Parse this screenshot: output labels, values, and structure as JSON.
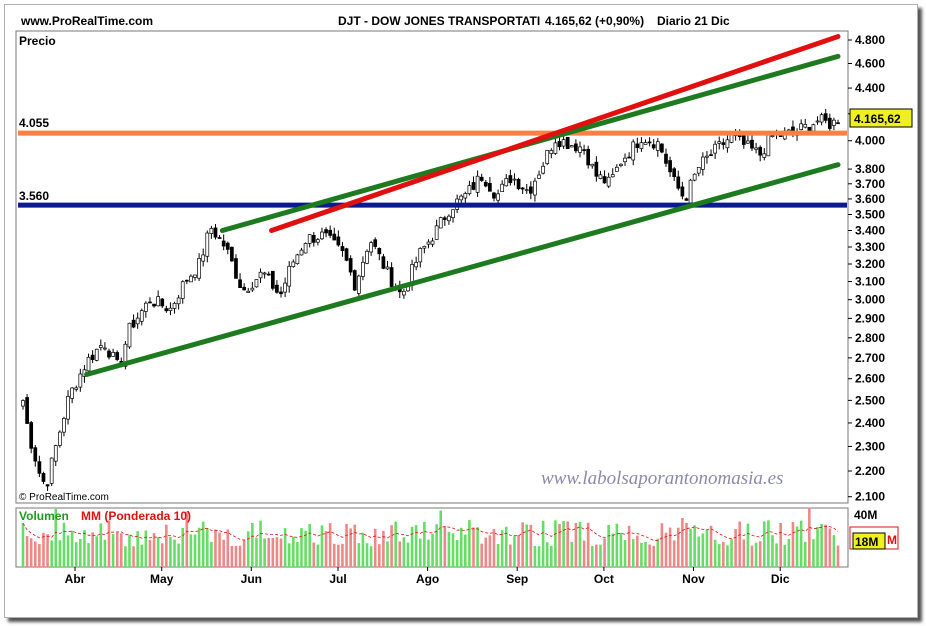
{
  "header": {
    "site": "www.ProRealTime.com",
    "instrument": "DJT - DOW JONES TRANSPORTATI",
    "last_change": "4.165,62 (+0,90%)",
    "period": "Diario  21 Dic"
  },
  "watermark": "www.labolsaporantonomasia.es",
  "copyright": "© ProRealTime.com",
  "colors": {
    "candle": "#000000",
    "support_line": "#1e7a1e",
    "trend_line": "#e01010",
    "level_high": "#ff8040",
    "level_low": "#0a1a90",
    "vol_up": "#66dd66",
    "vol_down": "#ee8888"
  },
  "chart_data": [
    {
      "type": "candlestick",
      "title": "Precio",
      "y_ticks": [
        "4.800",
        "4.600",
        "4.400",
        "4.200",
        "4.000",
        "3.800",
        "3.700",
        "3.600",
        "3.500",
        "3.400",
        "3.300",
        "3.200",
        "3.100",
        "3.000",
        "2.900",
        "2.800",
        "2.700",
        "2.600",
        "2.500",
        "2.400",
        "2.300",
        "2.200",
        "2.100"
      ],
      "y_range": [
        2080,
        4870
      ],
      "y_scale": "log",
      "x_labels": [
        "Abr",
        "May",
        "Jun",
        "Jul",
        "Ago",
        "Sep",
        "Oct",
        "Nov",
        "Dic"
      ],
      "last_value_label": "4.165,62",
      "close_path": [
        [
          "03-14",
          2500
        ],
        [
          "03-16",
          2350
        ],
        [
          "03-20",
          2180
        ],
        [
          "03-22",
          2140
        ],
        [
          "03-26",
          2330
        ],
        [
          "03-30",
          2520
        ],
        [
          "04-05",
          2680
        ],
        [
          "04-11",
          2780
        ],
        [
          "04-16",
          2650
        ],
        [
          "04-20",
          2850
        ],
        [
          "04-27",
          3000
        ],
        [
          "05-04",
          2950
        ],
        [
          "05-09",
          3100
        ],
        [
          "05-14",
          3200
        ],
        [
          "05-18",
          3420
        ],
        [
          "05-23",
          3300
        ],
        [
          "05-29",
          3050
        ],
        [
          "06-05",
          3150
        ],
        [
          "06-11",
          3020
        ],
        [
          "06-15",
          3200
        ],
        [
          "06-20",
          3350
        ],
        [
          "06-26",
          3370
        ],
        [
          "07-03",
          3250
        ],
        [
          "07-07",
          3080
        ],
        [
          "07-12",
          3350
        ],
        [
          "07-18",
          3150
        ],
        [
          "07-23",
          3020
        ],
        [
          "07-29",
          3250
        ],
        [
          "08-04",
          3400
        ],
        [
          "08-09",
          3550
        ],
        [
          "08-14",
          3620
        ],
        [
          "08-20",
          3760
        ],
        [
          "08-25",
          3620
        ],
        [
          "08-30",
          3750
        ],
        [
          "09-05",
          3650
        ],
        [
          "09-10",
          3840
        ],
        [
          "09-14",
          4020
        ],
        [
          "09-19",
          3980
        ],
        [
          "09-24",
          3950
        ],
        [
          "09-28",
          3760
        ],
        [
          "10-03",
          3700
        ],
        [
          "10-07",
          3860
        ],
        [
          "10-11",
          3950
        ],
        [
          "10-14",
          4030
        ],
        [
          "10-20",
          3980
        ],
        [
          "10-25",
          3720
        ],
        [
          "10-29",
          3600
        ],
        [
          "11-03",
          3820
        ],
        [
          "11-08",
          3920
        ],
        [
          "11-14",
          4030
        ],
        [
          "11-19",
          3960
        ],
        [
          "11-24",
          3900
        ],
        [
          "11-28",
          4030
        ],
        [
          "12-04",
          4050
        ],
        [
          "12-10",
          4100
        ],
        [
          "12-14",
          4150
        ],
        [
          "12-19",
          4120
        ],
        [
          "12-21",
          4166
        ]
      ],
      "horizontal_levels": [
        {
          "label": "4.055",
          "value": 4055,
          "color": "#ff8040"
        },
        {
          "label": "3.560",
          "value": 3560,
          "color": "#0a1a90"
        }
      ],
      "trend_lines": [
        {
          "color": "#1e7a1e",
          "from": [
            "04-05",
            2620
          ],
          "to": [
            "12-21",
            3830
          ]
        },
        {
          "color": "#1e7a1e",
          "from": [
            "05-22",
            3400
          ],
          "to": [
            "12-21",
            4660
          ]
        },
        {
          "color": "#e01010",
          "from": [
            "06-08",
            3400
          ],
          "to": [
            "12-21",
            4830
          ]
        }
      ]
    },
    {
      "type": "bar",
      "title": "Volumen",
      "series": [
        {
          "name": "Volumen"
        },
        {
          "name": "MM (Ponderada 10)"
        }
      ],
      "y_ticks": [
        "40M"
      ],
      "y_range": [
        0,
        40
      ],
      "last_value_label": "18M",
      "level_range": [
        14,
        32
      ]
    }
  ]
}
